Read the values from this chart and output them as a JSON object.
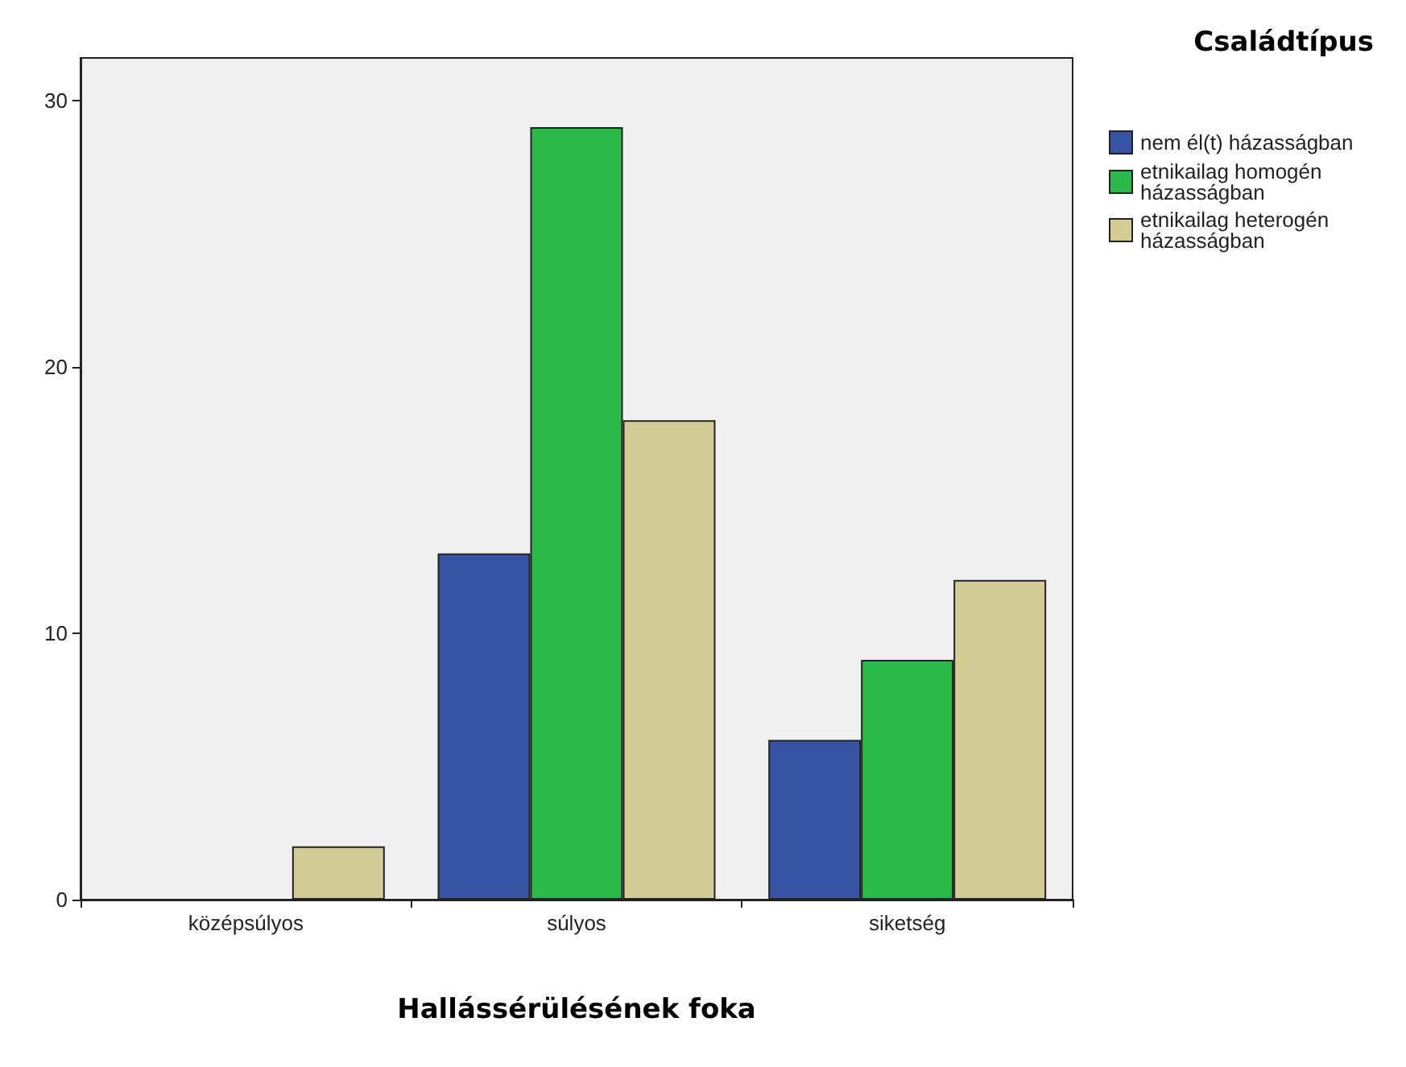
{
  "chart_data": {
    "type": "bar",
    "xlabel": "Hallássérülésének foka",
    "legend_title": "Családtípus",
    "categories": [
      "középsúlyos",
      "súlyos",
      "siketség"
    ],
    "series": [
      {
        "name": "nem él(t) házasságban",
        "color": "#3953a4",
        "values": [
          0,
          13,
          6
        ]
      },
      {
        "name": "etnikailag homogén házasságban",
        "color": "#2db84b",
        "values": [
          0,
          29,
          9
        ]
      },
      {
        "name": "etnikailag heterogén házasságban",
        "color": "#d4cc96",
        "values": [
          2,
          18,
          12
        ]
      }
    ],
    "ylim": [
      0,
      31.6
    ],
    "yticks": [
      0,
      10,
      20,
      30
    ],
    "grid": false,
    "legend": "right"
  }
}
